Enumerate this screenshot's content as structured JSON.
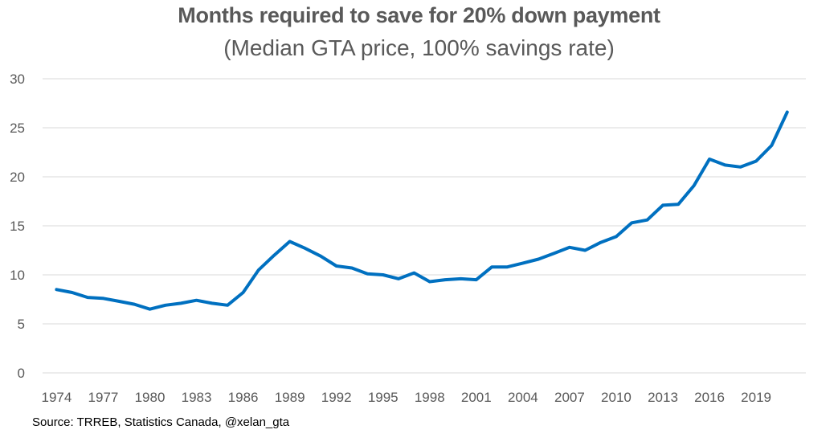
{
  "chart_data": {
    "type": "line",
    "title": "Months required to save for 20% down payment",
    "subtitle": "(Median GTA price, 100% savings rate)",
    "source": "Source: TRREB, Statistics Canada, @xelan_gta",
    "xlabel": "",
    "ylabel": "",
    "ylim": [
      0,
      30
    ],
    "yticks": [
      0,
      5,
      10,
      15,
      20,
      25,
      30
    ],
    "xticks": [
      1974,
      1977,
      1980,
      1983,
      1986,
      1989,
      1992,
      1995,
      1998,
      2001,
      2004,
      2007,
      2010,
      2013,
      2016,
      2019
    ],
    "grid": "horizontal",
    "line_color": "#0070C0",
    "grid_color": "#D9D9D9",
    "series": [
      {
        "x": [
          1974,
          1975,
          1976,
          1977,
          1978,
          1979,
          1980,
          1981,
          1982,
          1983,
          1984,
          1985,
          1986,
          1987,
          1988,
          1989,
          1990,
          1991,
          1992,
          1993,
          1994,
          1995,
          1996,
          1997,
          1998,
          1999,
          2000,
          2001,
          2002,
          2003,
          2004,
          2005,
          2006,
          2007,
          2008,
          2009,
          2010,
          2011,
          2012,
          2013,
          2014,
          2015,
          2016,
          2017,
          2018,
          2019,
          2020,
          2021
        ],
        "values": [
          8.5,
          8.2,
          7.7,
          7.6,
          7.3,
          7.0,
          6.5,
          6.9,
          7.1,
          7.4,
          7.1,
          6.9,
          8.2,
          10.5,
          12.0,
          13.4,
          12.7,
          11.9,
          10.9,
          10.7,
          10.1,
          10.0,
          9.6,
          10.2,
          9.3,
          9.5,
          9.6,
          9.5,
          10.8,
          10.8,
          11.2,
          11.6,
          12.2,
          12.8,
          12.5,
          13.3,
          13.9,
          15.3,
          15.6,
          17.1,
          17.2,
          19.1,
          21.8,
          21.2,
          21.0,
          21.6,
          23.2,
          26.6
        ]
      }
    ]
  }
}
